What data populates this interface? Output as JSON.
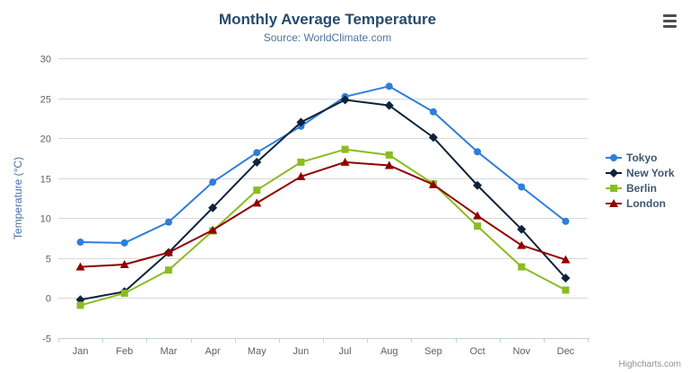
{
  "chart_data": {
    "type": "line",
    "title": "Monthly Average Temperature",
    "subtitle": "Source: WorldClimate.com",
    "categories": [
      "Jan",
      "Feb",
      "Mar",
      "Apr",
      "May",
      "Jun",
      "Jul",
      "Aug",
      "Sep",
      "Oct",
      "Nov",
      "Dec"
    ],
    "series": [
      {
        "name": "Tokyo",
        "color": "#2f7ed8",
        "marker": "circle",
        "values": [
          7.0,
          6.9,
          9.5,
          14.5,
          18.2,
          21.5,
          25.2,
          26.5,
          23.3,
          18.3,
          13.9,
          9.6
        ]
      },
      {
        "name": "New York",
        "color": "#0d233a",
        "marker": "diamond",
        "values": [
          -0.2,
          0.8,
          5.7,
          11.3,
          17.0,
          22.0,
          24.8,
          24.1,
          20.1,
          14.1,
          8.6,
          2.5
        ]
      },
      {
        "name": "Berlin",
        "color": "#8bbc21",
        "marker": "square",
        "values": [
          -0.9,
          0.6,
          3.5,
          8.4,
          13.5,
          17.0,
          18.6,
          17.9,
          14.3,
          9.0,
          3.9,
          1.0
        ]
      },
      {
        "name": "London",
        "color": "#910000",
        "marker": "triangle",
        "values": [
          3.9,
          4.2,
          5.7,
          8.5,
          11.9,
          15.2,
          17.0,
          16.6,
          14.2,
          10.3,
          6.6,
          4.8
        ]
      }
    ],
    "xlabel": "",
    "ylabel": "Temperature (°C)",
    "ylim": [
      -5,
      30
    ],
    "ytick_step": 5,
    "grid": true,
    "legend_position": "right",
    "axis_label_color": "#606060",
    "grid_color": "#d8d8d8",
    "axis_line_color": "#c0d0e0",
    "y_title_color": "#4572a7"
  },
  "credits": {
    "label": "Highcharts.com"
  }
}
